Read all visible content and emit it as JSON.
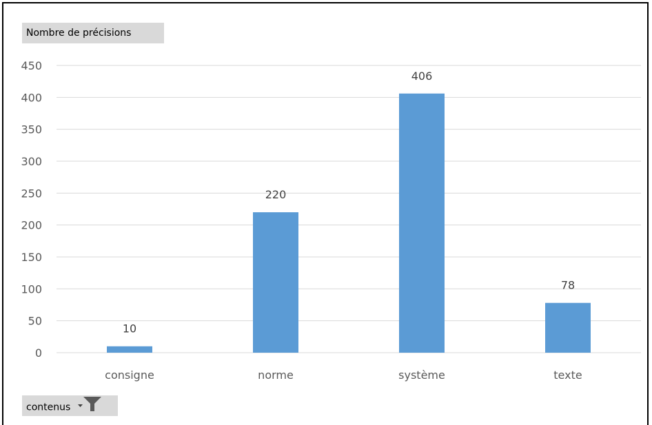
{
  "header": {
    "value_field_label": "Nombre de précisions"
  },
  "footer": {
    "axis_field_label": "contenus"
  },
  "icons": {
    "filter": "funnel-filter-icon",
    "dropdown": "dropdown-arrow-icon"
  },
  "colors": {
    "bar": "#5b9bd5",
    "grid": "#d9d9d9",
    "field_button": "#d9d9d9"
  },
  "chart_data": {
    "type": "bar",
    "categories": [
      "consigne",
      "norme",
      "système",
      "texte"
    ],
    "values": [
      10,
      220,
      406,
      78
    ],
    "ylim": [
      0,
      450
    ],
    "yticks": [
      0,
      50,
      100,
      150,
      200,
      250,
      300,
      350,
      400,
      450
    ],
    "grid": true,
    "data_labels": true
  }
}
